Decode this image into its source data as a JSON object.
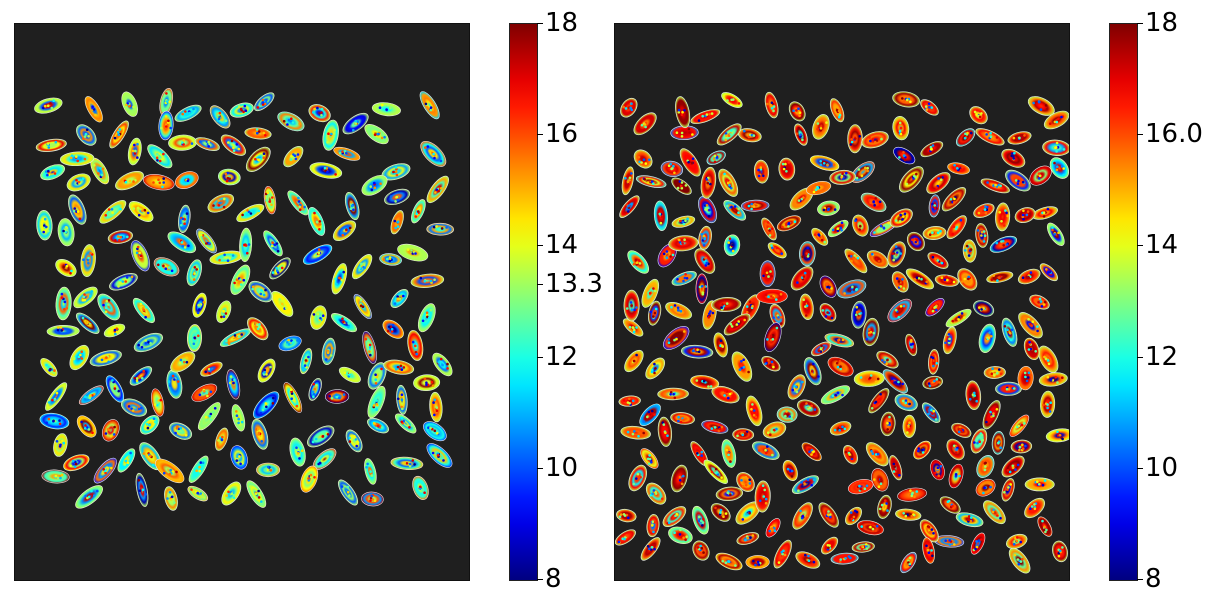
{
  "chart_data": [
    {
      "type": "heatmap",
      "title": "",
      "colormap": "jet",
      "background_color": "#1f1f1f",
      "color_range": [
        8,
        18
      ],
      "colorbar_ticks": [
        "8",
        "10",
        "12",
        "13.3",
        "14",
        "16",
        "18"
      ],
      "colorbar_tick_values": [
        8,
        10,
        12,
        13.3,
        14,
        16,
        18
      ],
      "particle_count": 170,
      "dominant_value_range": [
        10,
        16
      ],
      "axes_visible": false
    },
    {
      "type": "heatmap",
      "title": "",
      "colormap": "jet",
      "background_color": "#1f1f1f",
      "color_range": [
        8,
        18
      ],
      "colorbar_ticks": [
        "8",
        "10",
        "12",
        "14",
        "16.0",
        "18"
      ],
      "colorbar_tick_values": [
        8,
        10,
        12,
        14,
        16,
        18
      ],
      "particle_count": 250,
      "dominant_value_range": [
        15,
        18
      ],
      "axes_visible": false
    }
  ]
}
